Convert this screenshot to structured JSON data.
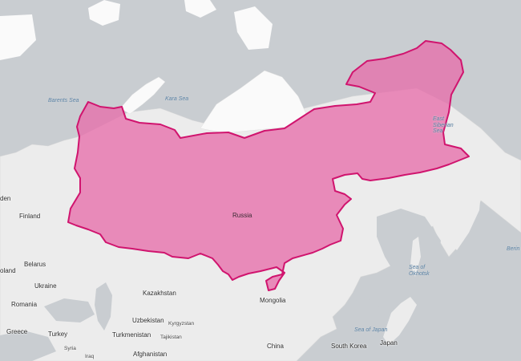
{
  "map": {
    "overlay_color": "#e76aa8",
    "overlay_stroke": "#d0146e",
    "water_color": "#c9cdd1",
    "land_color": "#ececec",
    "ice_color": "#fafafa"
  },
  "labels": {
    "barents_sea": "Barents Sea",
    "kara_sea": "Kara Sea",
    "east_siberian_sea": "East Siberian Sea",
    "sea_of_okhotsk": "Sea of Okhotsk",
    "sea_of_japan": "Sea of Japan",
    "bering": "Berin",
    "russia": "Russia",
    "finland": "Finland",
    "sweden_partial": "den",
    "belarus": "Belarus",
    "poland_partial": "oland",
    "ukraine": "Ukraine",
    "romania": "Romania",
    "greece": "Greece",
    "turkey": "Turkey",
    "syria": "Syria",
    "iraq": "Iraq",
    "kazakhstan": "Kazakhstan",
    "uzbekistan": "Uzbekistan",
    "kyrgyzstan": "Kyrgyzstan",
    "turkmenistan": "Turkmenistan",
    "tajikistan": "Tajikistan",
    "afghanistan": "Afghanistan",
    "mongolia": "Mongolia",
    "china": "China",
    "south_korea": "South Korea",
    "japan": "Japan"
  }
}
